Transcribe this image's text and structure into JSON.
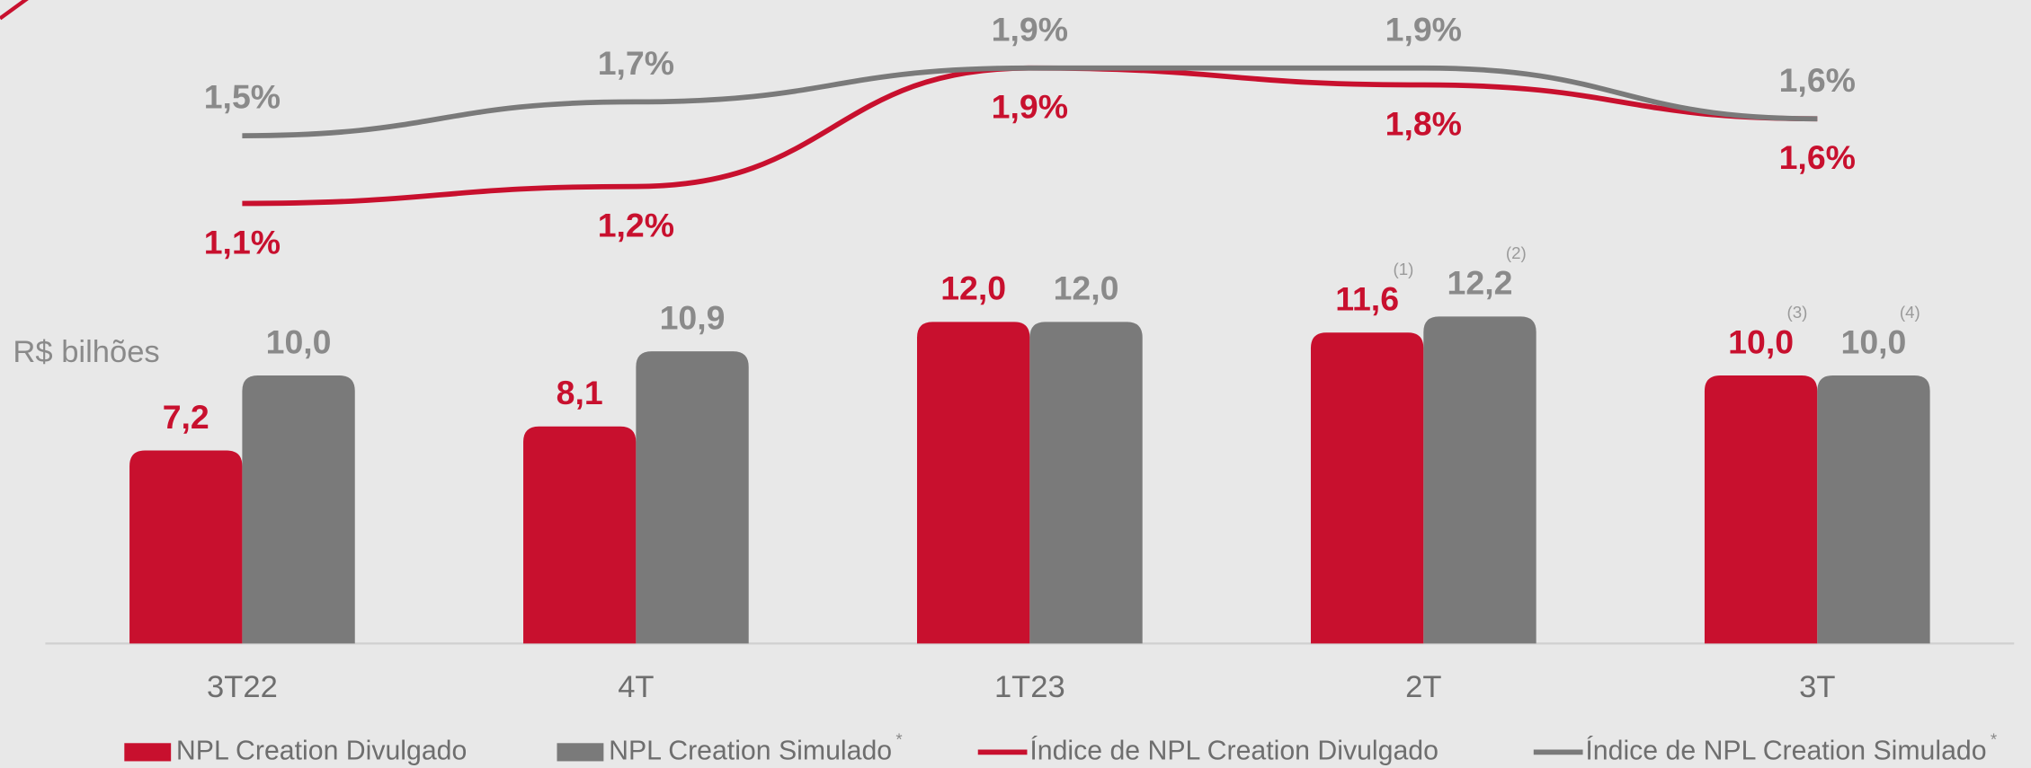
{
  "chart_data": {
    "type": "combo",
    "ylabel": "R$ bilhões",
    "categories": [
      "3T22",
      "4T",
      "1T23",
      "2T",
      "3T"
    ],
    "ylim": [
      0,
      24
    ],
    "y2lim": [
      -1.5,
      2.3
    ],
    "grid": false,
    "series": [
      {
        "name": "NPL Creation Divulgado",
        "type": "bar",
        "color": "#c8102e",
        "values": [
          7.2,
          8.1,
          12.0,
          11.6,
          10.0
        ],
        "value_labels": [
          "7,2",
          "8,1",
          "12,0",
          "11,6",
          "10,0"
        ],
        "value_notes": [
          null,
          null,
          null,
          "(1)",
          "(3)"
        ]
      },
      {
        "name": "NPL Creation Simulado",
        "name_note": "*",
        "type": "bar",
        "color": "#7a7a7a",
        "values": [
          10.0,
          10.9,
          12.0,
          12.2,
          10.0
        ],
        "value_labels": [
          "10,0",
          "10,9",
          "12,0",
          "12,2",
          "10,0"
        ],
        "value_notes": [
          null,
          null,
          null,
          "(2)",
          "(4)"
        ]
      },
      {
        "name": "Índice de NPL Creation Divulgado",
        "type": "line",
        "axis": "y2",
        "color": "#c8102e",
        "values": [
          1.1,
          1.2,
          1.9,
          1.8,
          1.6
        ],
        "value_labels": [
          "1,1%",
          "1,2%",
          "1,9%",
          "1,8%",
          "1,6%"
        ]
      },
      {
        "name": "Índice de NPL Creation Simulado",
        "name_note": "*",
        "type": "line",
        "axis": "y2",
        "color": "#7a7a7a",
        "values": [
          1.5,
          1.7,
          1.9,
          1.9,
          1.6
        ],
        "value_labels": [
          "1,5%",
          "1,7%",
          "1,9%",
          "1,9%",
          "1,6%"
        ]
      }
    ]
  }
}
